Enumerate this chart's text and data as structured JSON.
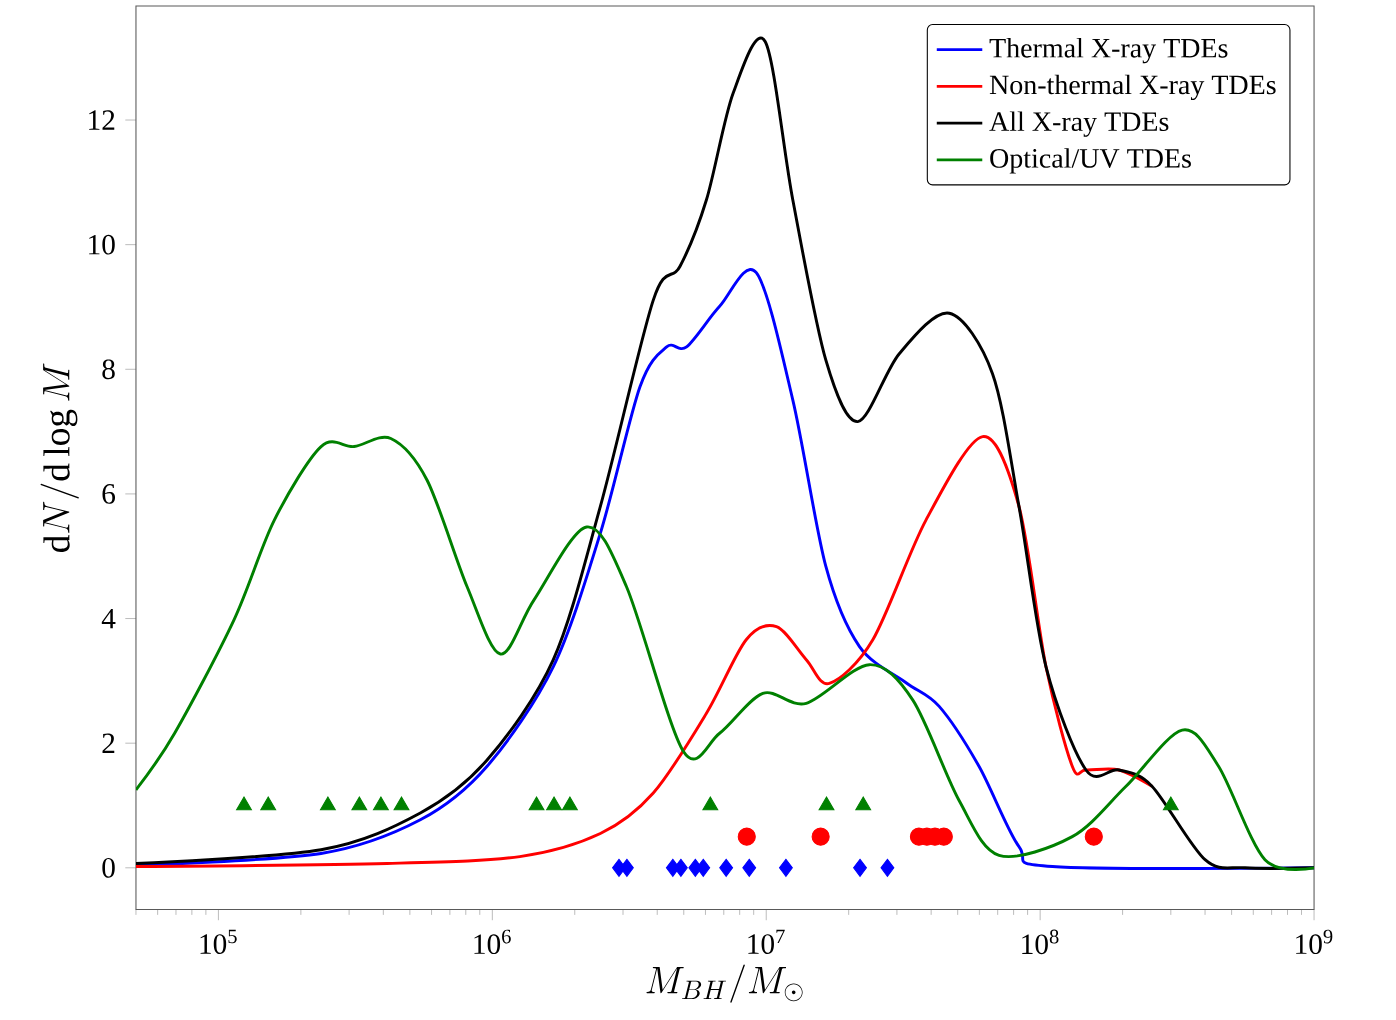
{
  "chart_data": {
    "type": "line",
    "xlabel": "M_{BH}/M_\\odot",
    "ylabel": "\\mathrm{d}N/\\mathrm{d}\\log M",
    "log": "x",
    "xlim": [
      50000.0,
      1000000000.0
    ],
    "ylim": [
      -0.67,
      13.83
    ],
    "xticks": [
      {
        "value": 100000.0,
        "label": "10$^{5}$"
      },
      {
        "value": 1000000.0,
        "label": "10$^{6}$"
      },
      {
        "value": 10000000.0,
        "label": "10$^{7}$"
      },
      {
        "value": 100000000.0,
        "label": "10$^{8}$"
      },
      {
        "value": 1000000000.0,
        "label": "10$^{9}$"
      }
    ],
    "yticks": [
      0,
      2,
      4,
      6,
      8,
      10,
      12
    ],
    "legend": "top right",
    "series": [
      {
        "name": "Thermal X-ray TDEs",
        "type": "line",
        "color": "#0000ff",
        "x": [
          50000.0,
          237000.0,
          546000.0,
          957000.0,
          1670000.0,
          2480000.0,
          3460000.0,
          4330000.0,
          5120000.0,
          6760000.0,
          9200000.0,
          12500000.0,
          16500000.0,
          21900000.0,
          32400000.0,
          42800000.0,
          59800000.0,
          83700000.0,
          111000000.0,
          1000000000.0
        ],
        "values": [
          0.04,
          0.23,
          0.77,
          1.63,
          3.23,
          5.37,
          7.72,
          8.36,
          8.36,
          9.01,
          9.55,
          7.51,
          4.84,
          3.55,
          2.97,
          2.59,
          1.63,
          0.34,
          0.02,
          0
        ]
      },
      {
        "name": "Non-thermal X-ray TDEs",
        "type": "line",
        "color": "#ff0000",
        "x": [
          50000.0,
          413000.0,
          1260000.0,
          2480000.0,
          3870000.0,
          6050000.0,
          8450000.0,
          10900000.0,
          14000000.0,
          17000000.0,
          24500000.0,
          38300000.0,
          61700000.0,
          83700000.0,
          105000000.0,
          131000000.0,
          147000000.0,
          194000000.0,
          256000000.0
        ],
        "values": [
          0.02,
          0.07,
          0.18,
          0.55,
          1.2,
          2.48,
          3.66,
          3.87,
          3.34,
          2.96,
          3.66,
          5.58,
          6.92,
          5.8,
          3.23,
          1.63,
          1.57,
          1.57,
          1.31
        ]
      },
      {
        "name": "All X-ray TDEs",
        "type": "line",
        "color": "#000000",
        "x": [
          50000.0,
          237000.0,
          546000.0,
          957000.0,
          1670000.0,
          2480000.0,
          3870000.0,
          4840000.0,
          6050000.0,
          7570000.0,
          9910000.0,
          12500000.0,
          16500000.0,
          21600000.0,
          30600000.0,
          46600000.0,
          67000000.0,
          83700000.0,
          105000000.0,
          147000000.0,
          194000000.0,
          256000000.0,
          400000000.0,
          560000000.0,
          1000000000.0
        ],
        "values": [
          0.07,
          0.29,
          0.88,
          1.73,
          3.34,
          5.8,
          9.11,
          9.65,
          10.72,
          12.43,
          13.26,
          10.72,
          8.15,
          7.16,
          8.25,
          8.9,
          7.93,
          5.8,
          3.23,
          1.57,
          1.57,
          1.31,
          0.13,
          0,
          0
        ]
      },
      {
        "name": "Optical/UV TDEs",
        "type": "line",
        "color": "#008000",
        "x": [
          50000.0,
          69200.0,
          114000.0,
          160000.0,
          237000.0,
          313000.0,
          426000.0,
          578000.0,
          809000.0,
          1070000.0,
          1420000.0,
          2210000.0,
          3090000.0,
          4980000.0,
          6760000.0,
          9720000.0,
          14000000.0,
          23800000.0,
          34300000.0,
          50600000.0,
          70800000.0,
          131000000.0,
          205000000.0,
          330000000.0,
          448000000.0,
          662000000.0,
          1000000000.0
        ],
        "values": [
          1.25,
          2.16,
          3.98,
          5.58,
          6.76,
          6.76,
          6.89,
          6.22,
          4.51,
          3.43,
          4.3,
          5.47,
          4.51,
          1.87,
          2.16,
          2.8,
          2.64,
          3.26,
          2.69,
          1.08,
          0.2,
          0.5,
          1.3,
          2.21,
          1.63,
          0.13,
          0
        ]
      },
      {
        "type": "scatter",
        "marker": "triangle",
        "color": "#008000",
        "x": [
          124000.0,
          152000.0,
          251000.0,
          327000.0,
          392000.0,
          466000.0,
          1450000.0,
          1680000.0,
          1920000.0,
          6250000.0,
          16600000.0,
          22600000.0,
          300000000.0
        ],
        "values": [
          1,
          1,
          1,
          1,
          1,
          1,
          1,
          1,
          1,
          1,
          1,
          1,
          1
        ]
      },
      {
        "type": "scatter",
        "marker": "circle",
        "color": "#ff0000",
        "x": [
          8490000.0,
          15800000.0,
          36100000.0,
          38600000.0,
          41300000.0,
          44500000.0,
          157000000.0
        ],
        "values": [
          0.5,
          0.5,
          0.5,
          0.5,
          0.5,
          0.5,
          0.5
        ]
      },
      {
        "type": "scatter",
        "marker": "diamond",
        "color": "#0000ff",
        "x": [
          2900000.0,
          3100000.0,
          4560000.0,
          4880000.0,
          5510000.0,
          5890000.0,
          7140000.0,
          8670000.0,
          11800000.0,
          22000000.0,
          27700000.0
        ],
        "values": [
          0,
          0,
          0,
          0,
          0,
          0,
          0,
          0,
          0,
          0,
          0
        ]
      }
    ]
  }
}
